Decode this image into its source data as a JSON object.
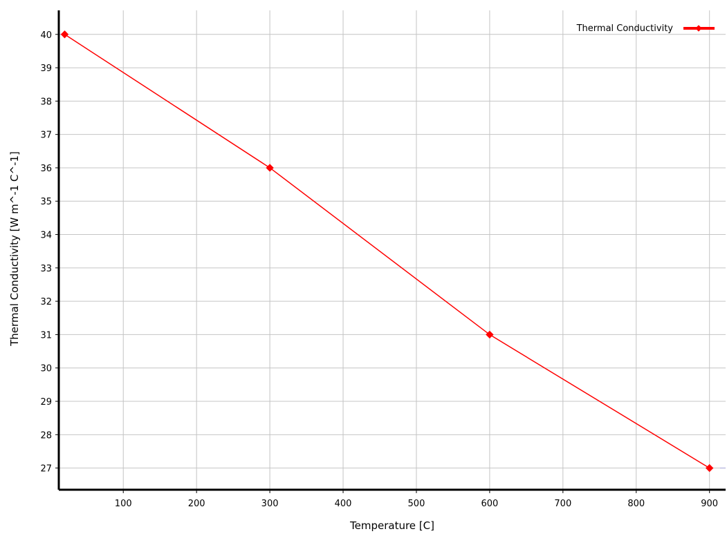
{
  "chart_data": {
    "type": "line",
    "xlabel": "Temperature  [C]",
    "ylabel": "Thermal Conductivity  [W m^-1 C^-1]",
    "xlim": [
      12,
      922
    ],
    "ylim": [
      26.35,
      40.72
    ],
    "xticks": [
      100,
      200,
      300,
      400,
      500,
      600,
      700,
      800,
      900
    ],
    "yticks": [
      27,
      28,
      29,
      30,
      31,
      32,
      33,
      34,
      35,
      36,
      37,
      38,
      39,
      40
    ],
    "grid": true,
    "legend_position": "top-right",
    "series": [
      {
        "name": "Thermal Conductivity",
        "color": "#ff0000",
        "marker": "diamond",
        "x": [
          20,
          300,
          600,
          900
        ],
        "y": [
          40,
          36,
          31,
          27
        ]
      }
    ]
  }
}
